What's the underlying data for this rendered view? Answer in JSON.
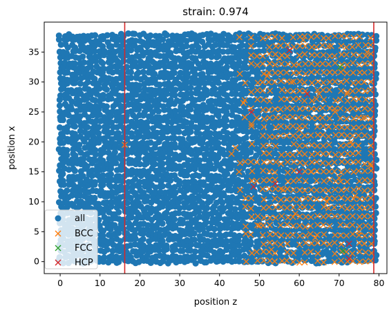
{
  "chart_data": {
    "type": "scatter",
    "title": "strain: 0.974",
    "xlabel": "position z",
    "ylabel": "position x",
    "xlim": [
      -4,
      82
    ],
    "ylim": [
      -2,
      40
    ],
    "xticks": [
      "0",
      "10",
      "20",
      "30",
      "40",
      "50",
      "60",
      "70",
      "80"
    ],
    "yticks": [
      "0",
      "5",
      "10",
      "15",
      "20",
      "25",
      "30",
      "35"
    ],
    "xtick_values": [
      0,
      10,
      20,
      30,
      40,
      50,
      60,
      70,
      80
    ],
    "ytick_values": [
      0,
      5,
      10,
      15,
      20,
      25,
      30,
      35
    ],
    "legend_placement": "lower-left",
    "grid": false,
    "vertical_lines": [
      {
        "x": 16.2,
        "color": "#d62728"
      },
      {
        "x": 78.7,
        "color": "#d62728"
      }
    ],
    "series": [
      {
        "name": "all",
        "marker": "o",
        "color": "#1f77b4",
        "description_region": {
          "x": [
            0,
            79
          ],
          "y": [
            0,
            38
          ]
        }
      },
      {
        "name": "BCC",
        "marker": "x",
        "color": "#ff7f0e",
        "sample_points": [
          [
            16.2,
            19.5
          ],
          [
            43,
            18
          ],
          [
            44,
            19
          ],
          [
            46,
            26.5
          ],
          [
            48,
            23
          ],
          [
            52,
            31
          ],
          [
            55,
            34
          ],
          [
            58,
            30
          ],
          [
            60,
            22
          ],
          [
            63,
            15
          ],
          [
            65,
            28
          ],
          [
            67,
            10
          ],
          [
            69,
            25
          ],
          [
            71,
            32
          ],
          [
            73,
            20
          ],
          [
            75,
            5
          ],
          [
            77,
            35
          ],
          [
            50,
            6
          ],
          [
            53,
            2
          ],
          [
            56,
            12
          ],
          [
            59,
            8
          ],
          [
            61,
            37
          ],
          [
            64,
            4
          ],
          [
            66,
            18
          ],
          [
            68,
            36
          ],
          [
            70,
            14
          ],
          [
            72,
            28
          ],
          [
            74,
            11
          ],
          [
            76,
            24
          ],
          [
            78,
            16
          ]
        ]
      },
      {
        "name": "FCC",
        "marker": "x",
        "color": "#2ca02c",
        "sample_points": [
          [
            70.3,
            32.5
          ],
          [
            71,
            1.8
          ]
        ]
      },
      {
        "name": "HCP",
        "marker": "x",
        "color": "#d62728",
        "sample_points": [
          [
            48,
            25
          ],
          [
            57.5,
            35.3
          ],
          [
            62,
            28
          ],
          [
            48.5,
            12.5
          ],
          [
            54,
            13
          ],
          [
            72.5,
            3
          ],
          [
            72.5,
            0.5
          ],
          [
            60,
            15
          ]
        ]
      }
    ],
    "legend": [
      "all",
      "BCC",
      "FCC",
      "HCP"
    ]
  }
}
